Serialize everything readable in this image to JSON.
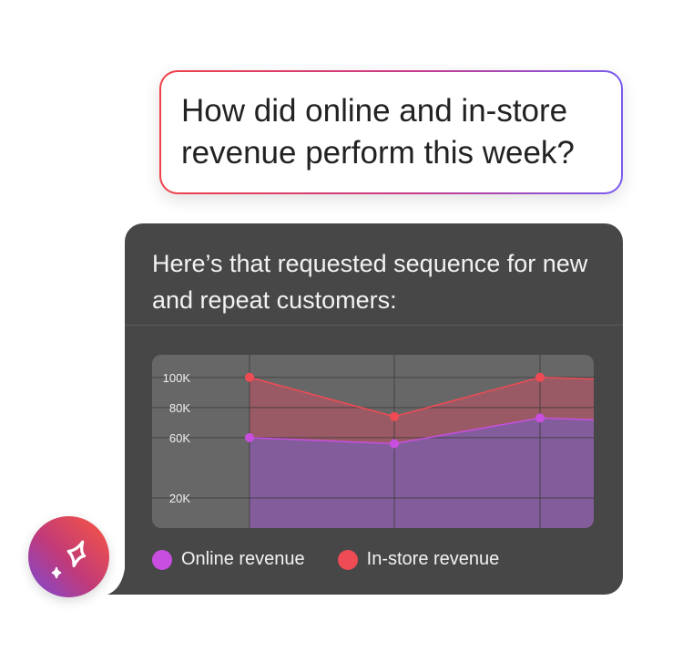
{
  "user_message": "How did online and in-store revenue perform this week?",
  "assistant": {
    "message": "Here’s that requested sequence for new and repeat customers:"
  },
  "colors": {
    "online": "#c84ee0",
    "instore": "#ee4b55",
    "card": "#474747",
    "chart_bg": "#676767"
  },
  "avatar": {
    "icon": "sparkle-icon"
  },
  "chart_data": {
    "type": "area",
    "ylim": [
      0,
      115
    ],
    "yticks": [
      {
        "value": 100,
        "label": "100K"
      },
      {
        "value": 80,
        "label": "80K"
      },
      {
        "value": 60,
        "label": "60K"
      },
      {
        "value": 20,
        "label": "20K"
      }
    ],
    "grid": true,
    "legend": "bottom-left",
    "series": [
      {
        "name": "Online revenue",
        "values": [
          60,
          56,
          73,
          70
        ]
      },
      {
        "name": "In-store revenue",
        "values": [
          100,
          74,
          100,
          97
        ]
      }
    ]
  }
}
